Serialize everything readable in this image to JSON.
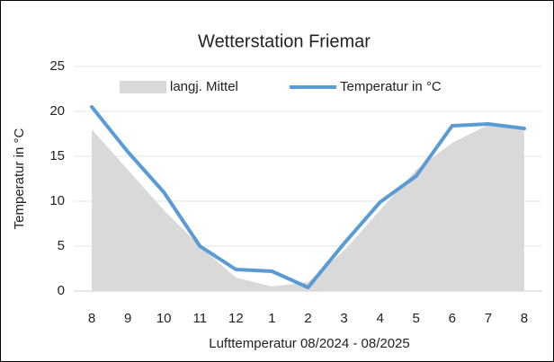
{
  "chart_data": {
    "type": "line",
    "title": "Wetterstation Friemar",
    "x_label": "Lufttemperatur 08/2024 - 08/2025",
    "y_label": "Temperatur in °C",
    "categories": [
      "8",
      "9",
      "10",
      "11",
      "12",
      "1",
      "2",
      "3",
      "4",
      "5",
      "6",
      "7",
      "8"
    ],
    "series": [
      {
        "name": "langj. Mittel",
        "color": "#d9d9d9",
        "kind": "area",
        "values": [
          18,
          13.5,
          9,
          5,
          1.5,
          0.5,
          1,
          4.5,
          9,
          13.5,
          16.5,
          18.5,
          18
        ]
      },
      {
        "name": "Temperatur in °C",
        "color": "#5b9bd5",
        "kind": "line",
        "values": [
          20.5,
          15.5,
          11,
          5,
          2.4,
          2.2,
          0.4,
          5.3,
          9.9,
          12.8,
          18.4,
          18.6,
          18.1
        ]
      }
    ],
    "ylim": [
      0,
      25
    ],
    "yticks": [
      0,
      5,
      10,
      15,
      20,
      25
    ],
    "grid": true,
    "legend": "top"
  }
}
